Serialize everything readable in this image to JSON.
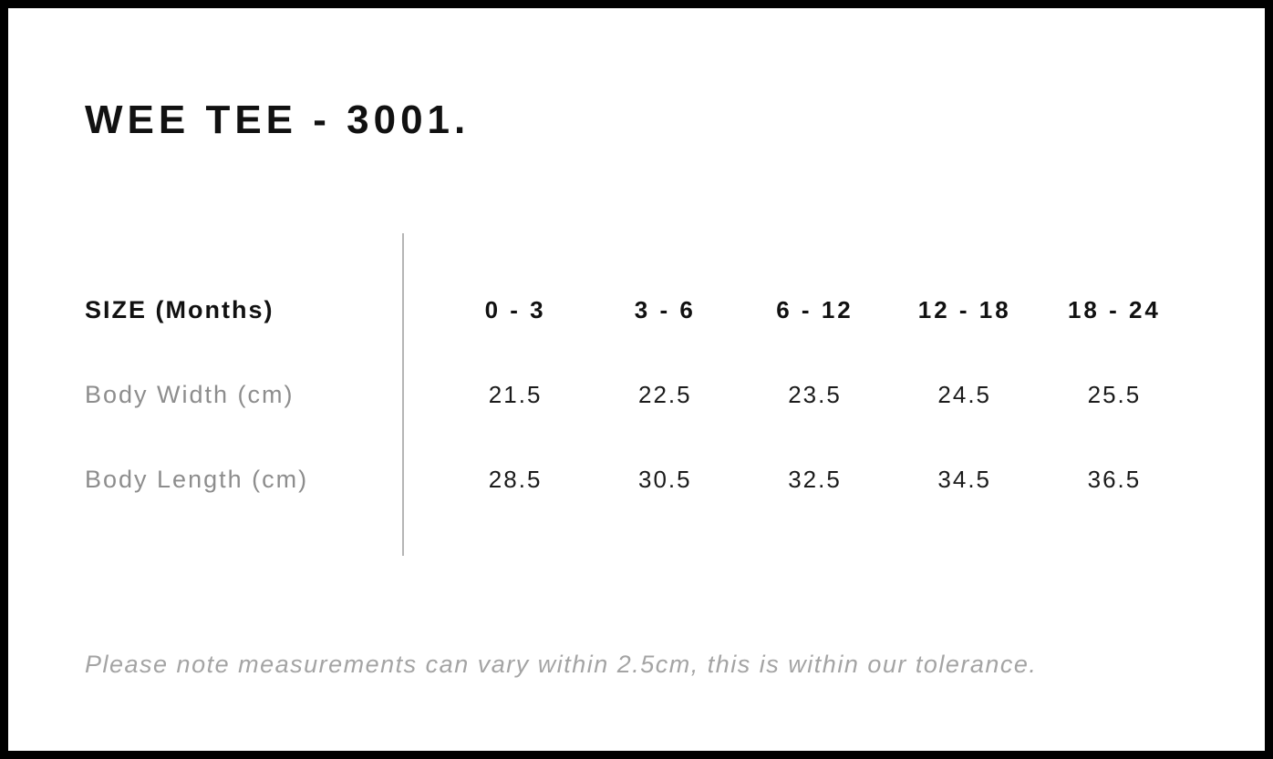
{
  "page": {
    "title": "WEE TEE - 3001."
  },
  "table": {
    "header": {
      "label": "SIZE (Months)",
      "columns": [
        "0 - 3",
        "3 - 6",
        "6 - 12",
        "12 - 18",
        "18 - 24"
      ]
    },
    "rows": [
      {
        "label": "Body Width (cm)",
        "values": [
          "21.5",
          "22.5",
          "23.5",
          "24.5",
          "25.5"
        ]
      },
      {
        "label": "Body Length (cm)",
        "values": [
          "28.5",
          "30.5",
          "32.5",
          "34.5",
          "36.5"
        ]
      }
    ]
  },
  "footer": {
    "note": "Please note measurements can vary within 2.5cm, this is within our tolerance."
  },
  "colors": {
    "border": "#000000",
    "heading_text": "#111111",
    "value_text": "#1b1b1b",
    "muted_label": "#8d8d8d",
    "note_text": "#a4a4a4",
    "divider": "#b5b5b5",
    "background": "#ffffff"
  }
}
